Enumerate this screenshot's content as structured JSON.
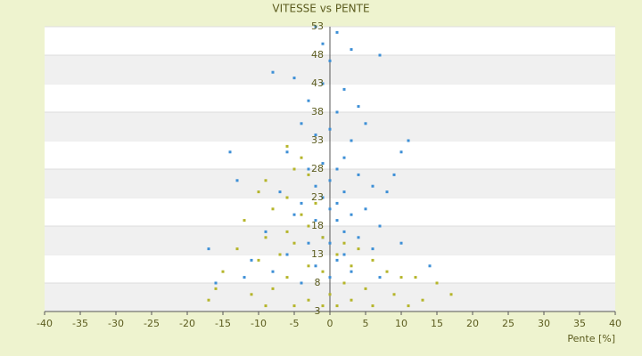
{
  "chart_data": {
    "type": "scatter",
    "title": "VITESSE vs PENTE",
    "x_label": "Pente [%]",
    "xlim": [
      -40,
      40
    ],
    "xticks": [
      -40,
      -35,
      -30,
      -25,
      -20,
      -15,
      -10,
      -5,
      0,
      5,
      10,
      15,
      20,
      25,
      30,
      35,
      40
    ],
    "ylim": [
      3,
      53
    ],
    "yticks": [
      3,
      8,
      13,
      18,
      23,
      28,
      33,
      38,
      43,
      48,
      53
    ],
    "grid": true,
    "series": [
      {
        "color": "#3d8fd6",
        "x": [
          -2,
          1,
          -1,
          3,
          0,
          -8,
          7,
          -5,
          -1,
          2,
          -3,
          4,
          1,
          -4,
          5,
          0,
          -2,
          3,
          11,
          -14,
          10,
          -6,
          2,
          -1,
          1,
          -3,
          4,
          9,
          -13,
          0,
          6,
          -2,
          -7,
          2,
          8,
          -1,
          1,
          -4,
          5,
          0,
          3,
          -5,
          -2,
          1,
          7,
          -9,
          2,
          -1,
          4,
          -3,
          0,
          10,
          -17,
          6,
          -6,
          2,
          -11,
          1,
          -2,
          14,
          -8,
          3,
          -12,
          0,
          7,
          -4,
          -16
        ],
        "values": [
          53,
          52,
          50,
          49,
          47,
          45,
          48,
          44,
          43,
          42,
          40,
          39,
          38,
          36,
          36,
          35,
          34,
          33,
          33,
          31,
          31,
          31,
          30,
          29,
          28,
          28,
          27,
          27,
          26,
          26,
          25,
          25,
          24,
          24,
          24,
          23,
          22,
          22,
          21,
          21,
          20,
          20,
          19,
          19,
          18,
          17,
          17,
          16,
          16,
          15,
          15,
          15,
          14,
          14,
          13,
          13,
          12,
          12,
          11,
          11,
          10,
          10,
          9,
          9,
          9,
          8,
          8
        ]
      },
      {
        "color": "#b5b52a",
        "x": [
          -6,
          -4,
          -5,
          -9,
          -3,
          -10,
          -6,
          -2,
          -8,
          -4,
          -12,
          -3,
          -6,
          -9,
          -1,
          2,
          -5,
          -13,
          4,
          -7,
          1,
          -10,
          6,
          -3,
          3,
          -15,
          8,
          -1,
          10,
          -6,
          12,
          2,
          -16,
          15,
          -8,
          5,
          17,
          -11,
          9,
          0,
          -3,
          3,
          -17,
          13,
          -1,
          1,
          -5,
          6,
          -9,
          11
        ],
        "values": [
          32,
          30,
          28,
          26,
          27,
          24,
          23,
          22,
          21,
          20,
          19,
          18,
          17,
          16,
          16,
          15,
          15,
          14,
          14,
          13,
          13,
          12,
          12,
          11,
          11,
          10,
          10,
          10,
          9,
          9,
          9,
          8,
          7,
          8,
          7,
          7,
          6,
          6,
          6,
          6,
          5,
          5,
          5,
          5,
          4,
          4,
          4,
          4,
          4,
          4
        ]
      }
    ]
  }
}
